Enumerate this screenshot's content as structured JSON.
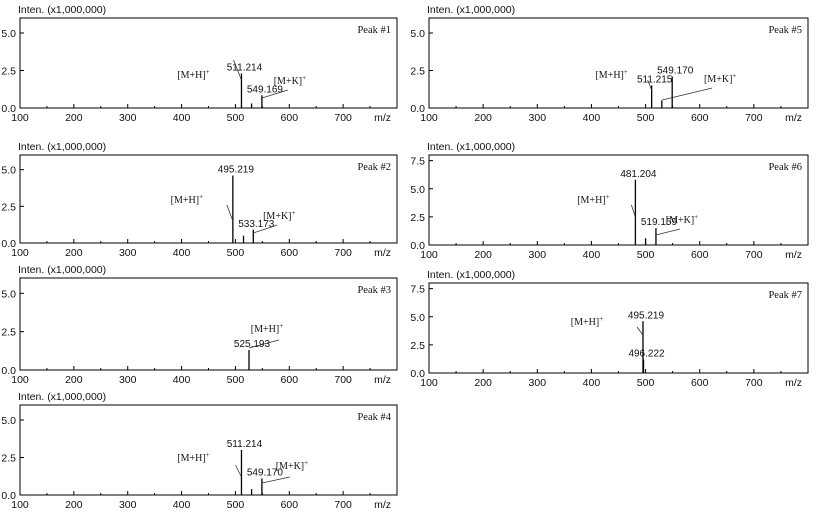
{
  "chart_data": [
    {
      "type": "bar",
      "title": "Peak #1",
      "ylabel": "Inten. (x1,000,000)",
      "xlabel": "m/z",
      "xlim": [
        100,
        800
      ],
      "ylim": [
        0,
        6
      ],
      "x_ticks": [
        "100",
        "200",
        "300",
        "400",
        "500",
        "600",
        "700"
      ],
      "y_ticks": [
        "0.0",
        "2.5",
        "5.0"
      ],
      "peaks": [
        {
          "mz": 511.214,
          "intensity": 2.3,
          "label": "511.214"
        },
        {
          "mz": 530,
          "intensity": 0.3
        },
        {
          "mz": 549.169,
          "intensity": 0.85,
          "label": "549.169"
        }
      ],
      "annotations": [
        {
          "text": "[M+H]",
          "sup": "+",
          "mz": 511.214
        },
        {
          "text": "[M+K]",
          "sup": "+",
          "mz": 549.169
        }
      ]
    },
    {
      "type": "bar",
      "title": "Peak #2",
      "ylabel": "Inten. (x1,000,000)",
      "xlabel": "m/z",
      "xlim": [
        100,
        800
      ],
      "ylim": [
        0,
        6
      ],
      "x_ticks": [
        "100",
        "200",
        "300",
        "400",
        "500",
        "600",
        "700"
      ],
      "y_ticks": [
        "0.0",
        "2.5",
        "5.0"
      ],
      "peaks": [
        {
          "mz": 495.219,
          "intensity": 4.6,
          "label": "495.219"
        },
        {
          "mz": 515,
          "intensity": 0.5
        },
        {
          "mz": 533.173,
          "intensity": 0.9,
          "label": "533.173"
        }
      ],
      "annotations": [
        {
          "text": "[M+H]",
          "sup": "+",
          "mz": 495.219
        },
        {
          "text": "[M+K]",
          "sup": "+",
          "mz": 533.173
        }
      ]
    },
    {
      "type": "bar",
      "title": "Peak #3",
      "ylabel": "Inten. (x1,000,000)",
      "xlabel": "m/z",
      "xlim": [
        100,
        800
      ],
      "ylim": [
        0,
        6
      ],
      "x_ticks": [
        "100",
        "200",
        "300",
        "400",
        "500",
        "600",
        "700"
      ],
      "y_ticks": [
        "0.0",
        "2.5",
        "5.0"
      ],
      "peaks": [
        {
          "mz": 525.193,
          "intensity": 1.3,
          "label": "525.193"
        }
      ],
      "annotations": [
        {
          "text": "[M+H]",
          "sup": "+",
          "mz": 525.193
        }
      ]
    },
    {
      "type": "bar",
      "title": "Peak #4",
      "ylabel": "Inten. (x1,000,000)",
      "xlabel": "m/z",
      "xlim": [
        100,
        800
      ],
      "ylim": [
        0,
        6
      ],
      "x_ticks": [
        "100",
        "200",
        "300",
        "400",
        "500",
        "600",
        "700"
      ],
      "y_ticks": [
        "0.0",
        "2.5",
        "5.0"
      ],
      "peaks": [
        {
          "mz": 511.214,
          "intensity": 3.0,
          "label": "511.214"
        },
        {
          "mz": 530,
          "intensity": 0.4
        },
        {
          "mz": 549.17,
          "intensity": 1.1,
          "label": "549.170"
        }
      ],
      "annotations": [
        {
          "text": "[M+H]",
          "sup": "+",
          "mz": 511.214
        },
        {
          "text": "[M+K]",
          "sup": "+",
          "mz": 549.17
        }
      ]
    },
    {
      "type": "bar",
      "title": "Peak #5",
      "ylabel": "Inten. (x1,000,000)",
      "xlabel": "m/z",
      "xlim": [
        100,
        800
      ],
      "ylim": [
        0,
        6
      ],
      "x_ticks": [
        "100",
        "200",
        "300",
        "400",
        "500",
        "600",
        "700"
      ],
      "y_ticks": [
        "0.0",
        "2.5",
        "5.0"
      ],
      "peaks": [
        {
          "mz": 511.215,
          "intensity": 1.5,
          "label": "511.215"
        },
        {
          "mz": 530,
          "intensity": 0.5
        },
        {
          "mz": 549.17,
          "intensity": 2.1,
          "label": "549.170"
        }
      ],
      "annotations": [
        {
          "text": "[M+H]",
          "sup": "+",
          "mz": 511.215
        },
        {
          "text": "[M+K]",
          "sup": "+",
          "mz": 549.17
        }
      ]
    },
    {
      "type": "bar",
      "title": "Peak #6",
      "ylabel": "Inten. (x1,000,000)",
      "xlabel": "m/z",
      "xlim": [
        100,
        800
      ],
      "ylim": [
        0,
        8
      ],
      "x_ticks": [
        "100",
        "200",
        "300",
        "400",
        "500",
        "600",
        "700"
      ],
      "y_ticks": [
        "0.0",
        "2.5",
        "5.0",
        "7.5"
      ],
      "peaks": [
        {
          "mz": 481.204,
          "intensity": 5.8,
          "label": "481.204"
        },
        {
          "mz": 500,
          "intensity": 0.6
        },
        {
          "mz": 519.159,
          "intensity": 1.5,
          "label": "519.159"
        }
      ],
      "annotations": [
        {
          "text": "[M+H]",
          "sup": "+",
          "mz": 481.204
        },
        {
          "text": "[M+K]",
          "sup": "+",
          "mz": 519.159
        }
      ]
    },
    {
      "type": "bar",
      "title": "Peak #7",
      "ylabel": "Inten. (x1,000,000)",
      "xlabel": "m/z",
      "xlim": [
        100,
        800
      ],
      "ylim": [
        0,
        8
      ],
      "x_ticks": [
        "100",
        "200",
        "300",
        "400",
        "500",
        "600",
        "700"
      ],
      "y_ticks": [
        "0.0",
        "2.5",
        "5.0",
        "7.5"
      ],
      "peaks": [
        {
          "mz": 495.219,
          "intensity": 4.6,
          "label": "495.219"
        },
        {
          "mz": 496.222,
          "intensity": 1.2,
          "label": "496.222"
        }
      ],
      "annotations": [
        {
          "text": "[M+H]",
          "sup": "+",
          "mz": 495.219
        }
      ]
    }
  ]
}
